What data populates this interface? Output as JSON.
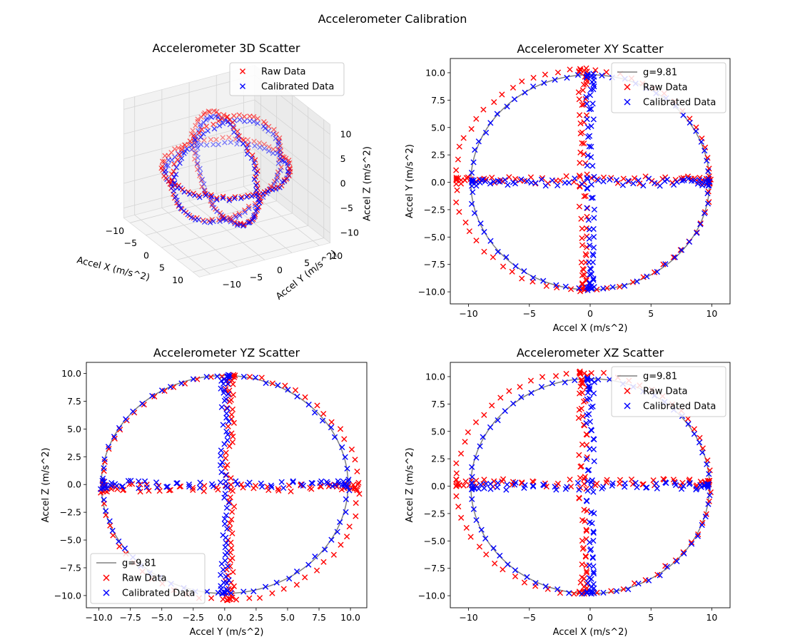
{
  "figure": {
    "title": "Accelerometer Calibration"
  },
  "colors": {
    "raw": "#ff0000",
    "calibrated": "#0000ff",
    "circle": "#808080",
    "legend_edge": "#cccccc"
  },
  "chart_data": [
    {
      "id": "3d",
      "type": "scatter",
      "projection": "3d",
      "title": "Accelerometer 3D Scatter",
      "xlabel": "Accel X (m/s^2)",
      "ylabel": "Accel Y (m/s^2)",
      "zlabel": "Accel Z (m/s^2)",
      "xticks": [
        -10,
        -5,
        0,
        5,
        10
      ],
      "yticks": [
        -10,
        -5,
        0,
        5,
        10
      ],
      "zticks": [
        -10,
        -5,
        0,
        5,
        10
      ],
      "legend": {
        "placement": "top-right",
        "entries": [
          "Raw Data",
          "Calibrated Data"
        ]
      },
      "series": [
        {
          "name": "Raw Data",
          "marker": "x",
          "color": "#ff0000",
          "offset": [
            -0.6,
            0.2,
            0.3
          ],
          "scale": [
            1.07,
            1.03,
            1.03
          ]
        },
        {
          "name": "Calibrated Data",
          "marker": "x",
          "color": "#0000ff",
          "offset": [
            0,
            0,
            0
          ],
          "scale": [
            1,
            1,
            1
          ]
        }
      ]
    },
    {
      "id": "xy",
      "type": "scatter",
      "title": "Accelerometer XY Scatter",
      "xlabel": "Accel X (m/s^2)",
      "ylabel": "Accel Y (m/s^2)",
      "xlim": [
        -11.5,
        11.5
      ],
      "ylim": [
        -11.1,
        11.3
      ],
      "xticks": [
        -10,
        -5,
        0,
        5,
        10
      ],
      "yticks": [
        -10.0,
        -7.5,
        -5.0,
        -2.5,
        0.0,
        2.5,
        5.0,
        7.5,
        10.0
      ],
      "legend": {
        "placement": "top-right",
        "entries": [
          "g=9.81",
          "Raw Data",
          "Calibrated Data"
        ]
      },
      "reference_circle": {
        "name": "g=9.81",
        "radius": 9.81
      },
      "series": [
        {
          "name": "Raw Data",
          "marker": "x",
          "color": "#ff0000",
          "offset": [
            -0.6,
            0.2
          ],
          "scale": [
            1.07,
            1.03
          ]
        },
        {
          "name": "Calibrated Data",
          "marker": "x",
          "color": "#0000ff",
          "offset": [
            0,
            0
          ],
          "scale": [
            1,
            1
          ]
        }
      ]
    },
    {
      "id": "yz",
      "type": "scatter",
      "title": "Accelerometer YZ Scatter",
      "xlabel": "Accel Y (m/s^2)",
      "ylabel": "Accel Z (m/s^2)",
      "xlim": [
        -11.0,
        11.3
      ],
      "ylim": [
        -11.1,
        11.0
      ],
      "xticks": [
        -10.0,
        -7.5,
        -5.0,
        -2.5,
        0.0,
        2.5,
        5.0,
        7.5,
        10.0
      ],
      "yticks": [
        -10.0,
        -7.5,
        -5.0,
        -2.5,
        0.0,
        2.5,
        5.0,
        7.5,
        10.0
      ],
      "legend": {
        "placement": "lower-left",
        "entries": [
          "g=9.81",
          "Raw Data",
          "Calibrated Data"
        ]
      },
      "reference_circle": {
        "name": "g=9.81",
        "radius": 9.81
      },
      "series": [
        {
          "name": "Raw Data",
          "marker": "x",
          "color": "#ff0000",
          "offset": [
            0.4,
            -0.3
          ],
          "scale": [
            1.04,
            1.03
          ]
        },
        {
          "name": "Calibrated Data",
          "marker": "x",
          "color": "#0000ff",
          "offset": [
            0,
            0
          ],
          "scale": [
            1,
            1
          ]
        }
      ]
    },
    {
      "id": "xz",
      "type": "scatter",
      "title": "Accelerometer XZ Scatter",
      "xlabel": "Accel X (m/s^2)",
      "ylabel": "Accel Z (m/s^2)",
      "xlim": [
        -11.5,
        11.5
      ],
      "ylim": [
        -11.1,
        11.3
      ],
      "xticks": [
        -10,
        -5,
        0,
        5,
        10
      ],
      "yticks": [
        -10.0,
        -7.5,
        -5.0,
        -2.5,
        0.0,
        2.5,
        5.0,
        7.5,
        10.0
      ],
      "legend": {
        "placement": "top-right",
        "entries": [
          "g=9.81",
          "Raw Data",
          "Calibrated Data"
        ]
      },
      "reference_circle": {
        "name": "g=9.81",
        "radius": 9.81
      },
      "series": [
        {
          "name": "Raw Data",
          "marker": "x",
          "color": "#ff0000",
          "offset": [
            -0.6,
            0.3
          ],
          "scale": [
            1.07,
            1.03
          ]
        },
        {
          "name": "Calibrated Data",
          "marker": "x",
          "color": "#0000ff",
          "offset": [
            0,
            0
          ],
          "scale": [
            1,
            1
          ]
        }
      ]
    }
  ]
}
